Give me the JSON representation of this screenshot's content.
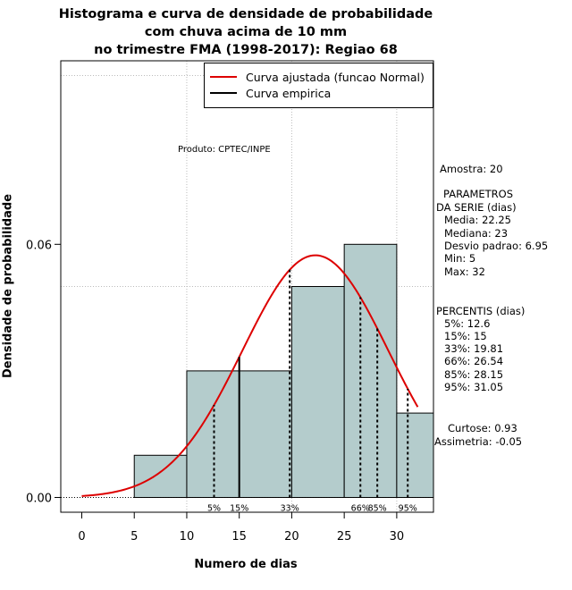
{
  "chart_data": {
    "type": "histogram",
    "title_lines": [
      "Histograma e curva de densidade de probabilidade",
      "com chuva acima de 10 mm",
      "no trimestre FMA (1998-2017): Regiao 68"
    ],
    "xlabel": "Numero de dias",
    "ylabel": "Densidade de probabilidade",
    "xlim": [
      -2,
      33.5
    ],
    "ylim": [
      -0.0035,
      0.1035
    ],
    "x_ticks": [
      0,
      5,
      10,
      15,
      20,
      25,
      30
    ],
    "y_ticks": [
      0.0,
      0.06
    ],
    "y_tick_labels": [
      "0.00",
      "0.06"
    ],
    "grid": true,
    "grid_x": [
      10,
      20,
      30
    ],
    "grid_y": [
      0.05,
      0.1
    ],
    "bins": [
      {
        "x0": 5,
        "x1": 10,
        "density": 0.01
      },
      {
        "x0": 10,
        "x1": 15,
        "density": 0.03
      },
      {
        "x0": 15,
        "x1": 20,
        "density": 0.03
      },
      {
        "x0": 20,
        "x1": 25,
        "density": 0.05
      },
      {
        "x0": 25,
        "x1": 30,
        "density": 0.06
      },
      {
        "x0": 30,
        "x1": 33.5,
        "density": 0.02
      }
    ],
    "bar_color": "#b4cccc",
    "normal_curve": {
      "mean": 22.25,
      "sd": 6.95,
      "x_range": [
        0,
        32
      ],
      "color": "#dd0000"
    },
    "percentiles": [
      {
        "label": "5%",
        "value": 12.6
      },
      {
        "label": "15%",
        "value": 15
      },
      {
        "label": "33%",
        "value": 19.81
      },
      {
        "label": "66%",
        "value": 26.54
      },
      {
        "label": "85%",
        "value": 28.15
      },
      {
        "label": "95%",
        "value": 31.05
      }
    ],
    "legend": {
      "position": "top-right",
      "entries": [
        {
          "label": "Curva ajustada (funcao Normal)",
          "color": "#dd0000"
        },
        {
          "label": "Curva empirica",
          "color": "#000000"
        }
      ]
    },
    "annotation": "Produto: CPTEC/INPE"
  },
  "stats": {
    "amostra": "Amostra: 20",
    "param_header_1": "PARAMETROS",
    "param_header_2": "DA SERIE (dias)",
    "media": "Media: 22.25",
    "mediana": "Mediana: 23",
    "desvio": "Desvio padrao: 6.95",
    "min": "Min: 5",
    "max": "Max: 32",
    "perc_header": "PERCENTIS (dias)",
    "p5": "5%: 12.6",
    "p15": "15%: 15",
    "p33": "33%: 19.81",
    "p66": "66%: 26.54",
    "p85": "85%: 28.15",
    "p95": "95%: 31.05",
    "curtose": "Curtose: 0.93",
    "assimetria": "Assimetria: -0.05"
  }
}
